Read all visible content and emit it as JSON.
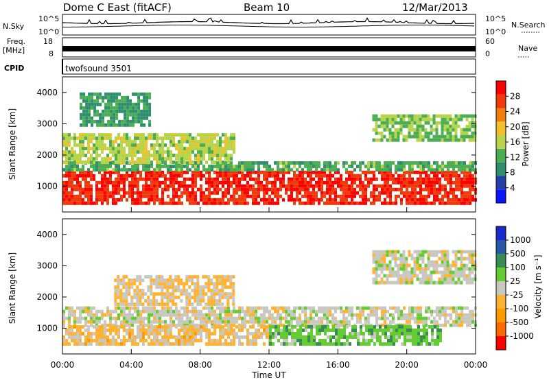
{
  "header": {
    "station": "Dome C East (fitACF)",
    "beam": "Beam 10",
    "date": "12/Mar/2013"
  },
  "strips": {
    "nsky_label": "N.Sky",
    "nsky_ticks": [
      "10^5",
      "10^0"
    ],
    "nsearch_label": "N.Search",
    "nsearch_ticks": [
      "10^5",
      "10^0"
    ],
    "freq_label": "Freq.",
    "freq_unit": "[MHz]",
    "freq_ticks": [
      "18",
      "8"
    ],
    "nave_label": "Nave",
    "nave_ticks": [
      "60",
      "0"
    ],
    "cpid_label": "CPID",
    "cpid_value": "twofsound 3501"
  },
  "x_axis": {
    "label": "Time UT",
    "ticks": [
      "00:00",
      "04:00",
      "08:00",
      "12:00",
      "16:00",
      "20:00",
      "00:00"
    ]
  },
  "colors": {
    "power": [
      "#0a14ff",
      "#243fa8",
      "#2f8e6e",
      "#4cae52",
      "#b7d44a",
      "#f2c02a",
      "#f47d12",
      "#f03a0c",
      "#ff0000"
    ],
    "velocity": [
      "#ff0000",
      "#ff6a00",
      "#ff9900",
      "#ffb233",
      "#c8c8c0",
      "#66cc33",
      "#3a8c55",
      "#2a58a8",
      "#1a2acc"
    ]
  },
  "chart_data": [
    {
      "type": "heatmap",
      "title": "Power",
      "xlabel": "Time UT",
      "ylabel": "Slant Range [km]",
      "xlim": [
        0,
        24
      ],
      "ylim": [
        180,
        4500
      ],
      "yticks": [
        "1000",
        "2000",
        "3000",
        "4000"
      ],
      "colorbar": {
        "label": "Power [dB]",
        "ticks": [
          "4",
          "8",
          "12",
          "16",
          "20",
          "24",
          "28"
        ],
        "range": [
          0,
          32
        ]
      },
      "bands": [
        {
          "range_km": [
            500,
            1500
          ],
          "hours": [
            0,
            24
          ],
          "value_db": 28
        },
        {
          "range_km": [
            1500,
            1800
          ],
          "hours": [
            0,
            24
          ],
          "value_db": 12
        },
        {
          "range_km": [
            1800,
            2700
          ],
          "hours": [
            0,
            10
          ],
          "value_db": 16
        },
        {
          "range_km": [
            2500,
            3300
          ],
          "hours": [
            18,
            24
          ],
          "value_db": 14
        },
        {
          "range_km": [
            3000,
            4000
          ],
          "hours": [
            1,
            5
          ],
          "value_db": 10
        }
      ]
    },
    {
      "type": "heatmap",
      "title": "Velocity",
      "xlabel": "Time UT",
      "ylabel": "Slant Range [km]",
      "xlim": [
        0,
        24
      ],
      "ylim": [
        180,
        4500
      ],
      "yticks": [
        "1000",
        "2000",
        "3000",
        "4000"
      ],
      "colorbar": {
        "label": "Velocity [m s⁻¹]",
        "ticks": [
          "1000",
          "500",
          "100",
          "25",
          "-25",
          "-100",
          "-500",
          "-1000"
        ],
        "range": [
          -1200,
          1200
        ]
      },
      "bands": [
        {
          "range_km": [
            1100,
            1700
          ],
          "hours": [
            0,
            24
          ],
          "value_ms": 0
        },
        {
          "range_km": [
            500,
            1100
          ],
          "hours": [
            0,
            12
          ],
          "value_ms": -200
        },
        {
          "range_km": [
            500,
            1100
          ],
          "hours": [
            12,
            22
          ],
          "value_ms": 300
        },
        {
          "range_km": [
            1800,
            2700
          ],
          "hours": [
            3,
            10
          ],
          "value_ms": -150
        },
        {
          "range_km": [
            2500,
            3500
          ],
          "hours": [
            18,
            24
          ],
          "value_ms": 0
        }
      ]
    }
  ]
}
